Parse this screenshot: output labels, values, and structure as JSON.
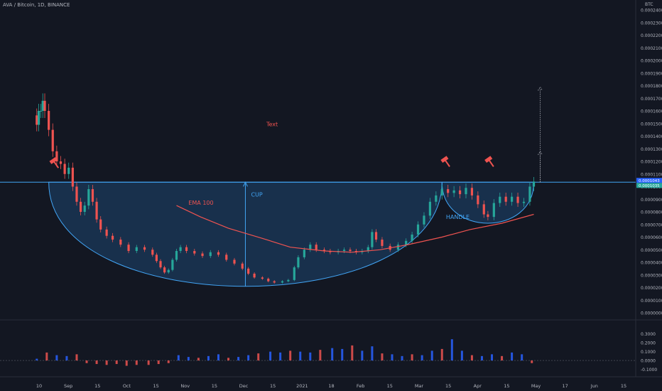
{
  "header": {
    "symbol_line": "AVA / Bitcoin, 1D, BINANCE",
    "price_unit": "BTC"
  },
  "chart_data": {
    "type": "candlestick",
    "price_axis": {
      "range": [
        0.0,
        0.00024
      ],
      "ticks": [
        "0.0000000",
        "0.0000100",
        "0.0000200",
        "0.0000300",
        "0.0000400",
        "0.0000500",
        "0.0000600",
        "0.0000700",
        "0.0000800",
        "0.0000900",
        "0.0001000",
        "0.0001100",
        "0.0001200",
        "0.0001300",
        "0.0001400",
        "0.0001500",
        "0.0001600",
        "0.0001700",
        "0.0001800",
        "0.0001900",
        "0.0002000",
        "0.0002100",
        "0.0002200",
        "0.0002300",
        "0.0002400"
      ]
    },
    "time_axis": {
      "ticks": [
        "10",
        "Sep",
        "15",
        "Oct",
        "15",
        "Nov",
        "15",
        "Dec",
        "15",
        "2021",
        "18",
        "Feb",
        "15",
        "Mar",
        "15",
        "Apr",
        "15",
        "May",
        "17",
        "Jun",
        "15"
      ]
    },
    "price_tags": [
      "0.0001043",
      "0.0001035"
    ],
    "close_series": [
      [
        "2020-09-10",
        0.000149
      ],
      [
        "2020-09-11",
        0.00016
      ],
      [
        "2020-09-12",
        0.00016
      ],
      [
        "2020-09-13",
        0.000168
      ],
      [
        "2020-09-14",
        0.00016
      ],
      [
        "2020-09-16",
        0.000145
      ],
      [
        "2020-09-18",
        0.000128
      ],
      [
        "2020-09-20",
        0.00012
      ],
      [
        "2020-09-22",
        0.000118
      ],
      [
        "2020-09-24",
        0.00011
      ],
      [
        "2020-09-26",
        0.000115
      ],
      [
        "2020-09-28",
        0.0001
      ],
      [
        "2020-09-30",
        8.8e-05
      ],
      [
        "2020-10-02",
        8e-05
      ],
      [
        "2020-10-04",
        8.5e-05
      ],
      [
        "2020-10-06",
        9.8e-05
      ],
      [
        "2020-10-08",
        8.8e-05
      ],
      [
        "2020-10-10",
        7.4e-05
      ],
      [
        "2020-10-12",
        6.6e-05
      ],
      [
        "2020-10-15",
        6.1e-05
      ],
      [
        "2020-10-18",
        5.8e-05
      ],
      [
        "2020-10-22",
        5.4e-05
      ],
      [
        "2020-10-26",
        4.9e-05
      ],
      [
        "2020-10-30",
        5.2e-05
      ],
      [
        "2020-11-03",
        5e-05
      ],
      [
        "2020-11-07",
        4.6e-05
      ],
      [
        "2020-11-09",
        4.1e-05
      ],
      [
        "2020-11-11",
        3.6e-05
      ],
      [
        "2020-11-13",
        3.2e-05
      ],
      [
        "2020-11-15",
        3.4e-05
      ],
      [
        "2020-11-17",
        4.2e-05
      ],
      [
        "2020-11-19",
        4.9e-05
      ],
      [
        "2020-11-21",
        5.2e-05
      ],
      [
        "2020-11-24",
        4.9e-05
      ],
      [
        "2020-11-28",
        4.7e-05
      ],
      [
        "2020-12-02",
        4.5e-05
      ],
      [
        "2020-12-06",
        4.8e-05
      ],
      [
        "2020-12-10",
        4.6e-05
      ],
      [
        "2020-12-14",
        4.2e-05
      ],
      [
        "2020-12-18",
        3.9e-05
      ],
      [
        "2020-12-22",
        3.5e-05
      ],
      [
        "2020-12-25",
        3.1e-05
      ],
      [
        "2020-12-28",
        2.8e-05
      ],
      [
        "2021-01-01",
        2.7e-05
      ],
      [
        "2021-01-04",
        2.5e-05
      ],
      [
        "2021-01-07",
        2.4e-05
      ],
      [
        "2021-01-11",
        2.5e-05
      ],
      [
        "2021-01-14",
        2.6e-05
      ],
      [
        "2021-01-17",
        3.6e-05
      ],
      [
        "2021-01-19",
        4.4e-05
      ],
      [
        "2021-01-22",
        5e-05
      ],
      [
        "2021-01-25",
        5.4e-05
      ],
      [
        "2021-01-28",
        5e-05
      ],
      [
        "2021-02-01",
        4.9e-05
      ],
      [
        "2021-02-04",
        4.8e-05
      ],
      [
        "2021-02-08",
        4.9e-05
      ],
      [
        "2021-02-11",
        5e-05
      ],
      [
        "2021-02-14",
        4.9e-05
      ],
      [
        "2021-02-17",
        4.8e-05
      ],
      [
        "2021-02-20",
        4.9e-05
      ],
      [
        "2021-02-23",
        5.2e-05
      ],
      [
        "2021-02-25",
        6.4e-05
      ],
      [
        "2021-02-27",
        5.8e-05
      ],
      [
        "2021-03-02",
        5.3e-05
      ],
      [
        "2021-03-06",
        5e-05
      ],
      [
        "2021-03-10",
        5.4e-05
      ],
      [
        "2021-03-14",
        5.7e-05
      ],
      [
        "2021-03-17",
        6.2e-05
      ],
      [
        "2021-03-20",
        7e-05
      ],
      [
        "2021-03-23",
        7.7e-05
      ],
      [
        "2021-03-26",
        8.8e-05
      ],
      [
        "2021-03-29",
        9.3e-05
      ],
      [
        "2021-04-01",
        9.8e-05
      ],
      [
        "2021-04-04",
        9.5e-05
      ],
      [
        "2021-04-07",
        9.7e-05
      ],
      [
        "2021-04-10",
        9.4e-05
      ],
      [
        "2021-04-13",
        9.9e-05
      ],
      [
        "2021-04-16",
        9.3e-05
      ],
      [
        "2021-04-19",
        8.6e-05
      ],
      [
        "2021-04-22",
        7.8e-05
      ],
      [
        "2021-04-24",
        7.6e-05
      ],
      [
        "2021-04-27",
        8.7e-05
      ],
      [
        "2021-04-30",
        9.2e-05
      ],
      [
        "2021-05-03",
        8.8e-05
      ],
      [
        "2021-05-06",
        9.2e-05
      ],
      [
        "2021-05-09",
        8.7e-05
      ],
      [
        "2021-05-12",
        8.8e-05
      ],
      [
        "2021-05-15",
        0.0001
      ],
      [
        "2021-05-17",
        0.000104
      ]
    ],
    "volume_axis": {
      "ticks": [
        "0.3000",
        "0.2000",
        "0.1000",
        "0.0000",
        "-0.1000"
      ],
      "range": [
        -0.12,
        0.33
      ]
    },
    "volume_series": [
      [
        "2020-09-10",
        0.02
      ],
      [
        "2020-09-15",
        0.09
      ],
      [
        "2020-09-20",
        0.06
      ],
      [
        "2020-09-25",
        0.05
      ],
      [
        "2020-09-30",
        0.07
      ],
      [
        "2020-10-05",
        -0.03
      ],
      [
        "2020-10-10",
        -0.04
      ],
      [
        "2020-10-15",
        -0.05
      ],
      [
        "2020-10-20",
        -0.04
      ],
      [
        "2020-10-25",
        -0.06
      ],
      [
        "2020-10-30",
        -0.05
      ],
      [
        "2020-11-05",
        -0.05
      ],
      [
        "2020-11-10",
        -0.04
      ],
      [
        "2020-11-15",
        -0.03
      ],
      [
        "2020-11-20",
        0.06
      ],
      [
        "2020-11-25",
        0.04
      ],
      [
        "2020-11-30",
        0.03
      ],
      [
        "2020-12-05",
        0.05
      ],
      [
        "2020-12-10",
        0.07
      ],
      [
        "2020-12-15",
        0.03
      ],
      [
        "2020-12-20",
        0.04
      ],
      [
        "2020-12-25",
        0.06
      ],
      [
        "2020-12-30",
        0.08
      ],
      [
        "2021-01-05",
        0.1
      ],
      [
        "2021-01-10",
        0.09
      ],
      [
        "2021-01-15",
        0.11
      ],
      [
        "2021-01-20",
        0.1
      ],
      [
        "2021-01-25",
        0.09
      ],
      [
        "2021-01-30",
        0.12
      ],
      [
        "2021-02-05",
        0.14
      ],
      [
        "2021-02-10",
        0.13
      ],
      [
        "2021-02-15",
        0.17
      ],
      [
        "2021-02-20",
        0.11
      ],
      [
        "2021-02-25",
        0.16
      ],
      [
        "2021-03-02",
        0.08
      ],
      [
        "2021-03-07",
        0.07
      ],
      [
        "2021-03-12",
        0.05
      ],
      [
        "2021-03-17",
        0.07
      ],
      [
        "2021-03-22",
        0.06
      ],
      [
        "2021-03-27",
        0.11
      ],
      [
        "2021-04-01",
        0.13
      ],
      [
        "2021-04-06",
        0.24
      ],
      [
        "2021-04-11",
        0.11
      ],
      [
        "2021-04-16",
        0.06
      ],
      [
        "2021-04-21",
        0.05
      ],
      [
        "2021-04-26",
        0.07
      ],
      [
        "2021-05-01",
        0.05
      ],
      [
        "2021-05-06",
        0.09
      ],
      [
        "2021-05-11",
        0.07
      ],
      [
        "2021-05-16",
        -0.03
      ]
    ],
    "ema": {
      "label": "EMA 100",
      "points": [
        [
          "2020-11-19",
          8.5e-05
        ],
        [
          "2020-12-01",
          7.6e-05
        ],
        [
          "2020-12-15",
          6.7e-05
        ],
        [
          "2021-01-01",
          5.9e-05
        ],
        [
          "2021-01-15",
          5.2e-05
        ],
        [
          "2021-02-01",
          4.9e-05
        ],
        [
          "2021-02-15",
          4.8e-05
        ],
        [
          "2021-03-01",
          5e-05
        ],
        [
          "2021-03-15",
          5.4e-05
        ],
        [
          "2021-04-01",
          6e-05
        ],
        [
          "2021-04-15",
          6.6e-05
        ],
        [
          "2021-05-01",
          7.1e-05
        ],
        [
          "2021-05-17",
          7.8e-05
        ]
      ]
    },
    "resistance": {
      "value": 0.0001035
    },
    "cup": {
      "label": "CUP",
      "start": "2020-09-16",
      "end": "2021-04-01",
      "rim": 0.0001035,
      "bottom": 2.1e-05
    },
    "handle": {
      "label": "HANDLE",
      "start": "2021-04-01",
      "end": "2021-05-17",
      "rim": 0.0001035,
      "bottom": 7.1e-05
    },
    "targets": [
      0.000179,
      0.000128
    ],
    "markers": [
      {
        "date": "2020-09-19",
        "value": 0.000119
      },
      {
        "date": "2021-04-03",
        "value": 0.00012
      },
      {
        "date": "2021-04-25",
        "value": 0.00012
      }
    ],
    "annotations": {
      "text_note": "Text"
    },
    "colors": {
      "up": "#26a69a",
      "down": "#ef5350",
      "ema": "#ef5350",
      "zone": "#1e4f80",
      "line": "#42a5f5"
    },
    "grid": false
  }
}
